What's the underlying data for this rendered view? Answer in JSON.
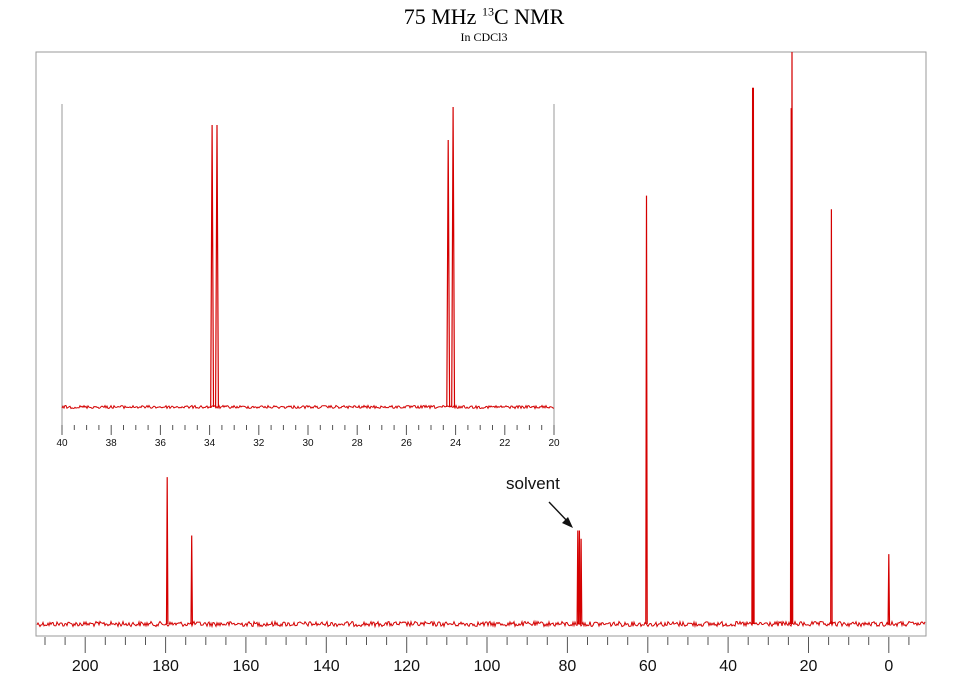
{
  "title_main": "75 MHz ",
  "title_sup": "13",
  "title_rest": "C NMR",
  "subtitle": "In CDCl3",
  "colors": {
    "spectrum": "#d40000",
    "frame": "#9a9a9a",
    "axis": "#555555",
    "text": "#111111"
  },
  "chart_data": [
    {
      "type": "line",
      "title": "75 MHz 13C NMR",
      "subtitle": "In CDCl3",
      "xlabel": "",
      "ylabel": "",
      "x_reversed": true,
      "xlim": [
        -9,
        212
      ],
      "ylim": [
        0,
        1
      ],
      "xticks": [
        200,
        180,
        160,
        140,
        120,
        100,
        80,
        60,
        40,
        20,
        0
      ],
      "minor_tick_step": 5,
      "peaks": [
        {
          "ppm": 179.6,
          "height": 0.267
        },
        {
          "ppm": 173.5,
          "height": 0.161
        },
        {
          "ppm": 77.4,
          "height": 0.17
        },
        {
          "ppm": 77.0,
          "height": 0.17
        },
        {
          "ppm": 76.6,
          "height": 0.155
        },
        {
          "ppm": 60.3,
          "height": 0.779
        },
        {
          "ppm": 33.9,
          "height": 0.975
        },
        {
          "ppm": 33.7,
          "height": 0.975
        },
        {
          "ppm": 24.3,
          "height": 0.938
        },
        {
          "ppm": 24.1,
          "height": 1.04
        },
        {
          "ppm": 14.3,
          "height": 0.754
        },
        {
          "ppm": 0.0,
          "height": 0.127
        }
      ],
      "annotations": [
        {
          "text": "solvent",
          "ppm": 77.0
        }
      ]
    },
    {
      "type": "line",
      "title": "",
      "x_reversed": true,
      "xlim": [
        20,
        40
      ],
      "ylim": [
        0,
        1
      ],
      "xticks": [
        40,
        38,
        36,
        34,
        32,
        30,
        28,
        26,
        24,
        22,
        20
      ],
      "minor_tick_step": 0.5,
      "peaks": [
        {
          "ppm": 33.9,
          "height": 0.94
        },
        {
          "ppm": 33.7,
          "height": 0.94
        },
        {
          "ppm": 24.3,
          "height": 0.89
        },
        {
          "ppm": 24.1,
          "height": 1.0
        }
      ]
    }
  ]
}
